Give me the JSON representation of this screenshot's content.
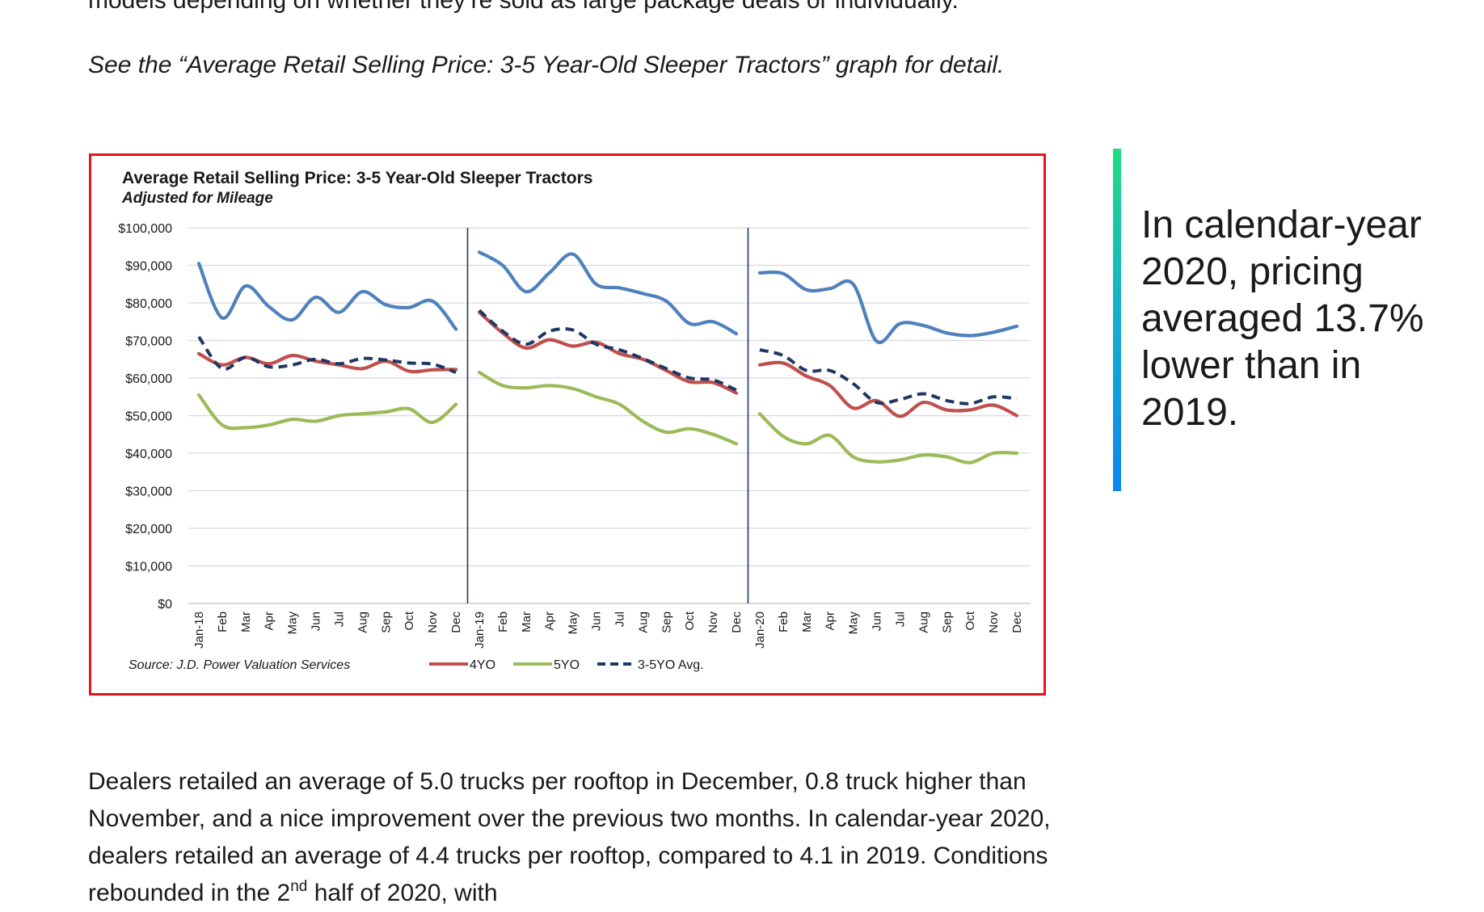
{
  "article": {
    "para_top": "models depending on whether they’re sold as large package deals or individually.",
    "para_italic": "See the “Average Retail Selling Price: 3-5 Year-Old Sleeper Tractors” graph for detail.",
    "pull_quote": "In calendar-year 2020, pricing averaged 13.7% lower than in 2019.",
    "para_bottom_a": "Dealers retailed an average of 5.0 trucks per rooftop in December, 0.8 truck higher than November, and a nice improvement over the previous two months. In calendar-year 2020, dealers retailed an average of 4.4 trucks per rooftop, compared to 4.1 in 2019. Conditions rebounded in the 2",
    "para_bottom_sup": "nd",
    "para_bottom_b": " half of 2020, with"
  },
  "colors": {
    "frame": "#e8141b",
    "blue": "#4f81bd",
    "red": "#c0504d",
    "green": "#9bbb59",
    "avg": "#1f3864",
    "accent_gradient": [
      "#1fdc82",
      "#0b86f0"
    ]
  },
  "chart_data": {
    "type": "line",
    "title": "Average Retail Selling Price: 3-5 Year-Old Sleeper Tractors",
    "subtitle": "Adjusted for Mileage",
    "source": "Source: J.D. Power Valuation Services",
    "ylim": [
      0,
      100000
    ],
    "y_ticks": [
      "$100,000",
      "$90,000",
      "$80,000",
      "$70,000",
      "$60,000",
      "$50,000",
      "$40,000",
      "$30,000",
      "$20,000",
      "$10,000",
      "$0"
    ],
    "grid": true,
    "legend_position": "bottom",
    "categories": [
      "Jan-18",
      "Feb",
      "Mar",
      "Apr",
      "May",
      "Jun",
      "Jul",
      "Aug",
      "Sep",
      "Oct",
      "Nov",
      "Dec",
      "Jan-19",
      "Feb",
      "Mar",
      "Apr",
      "May",
      "Jun",
      "Jul",
      "Aug",
      "Sep",
      "Oct",
      "Nov",
      "Dec",
      "Jan-20",
      "Feb",
      "Mar",
      "Apr",
      "May",
      "Jun",
      "Jul",
      "Aug",
      "Sep",
      "Oct",
      "Nov",
      "Dec"
    ],
    "year_dividers_after": [
      "Dec",
      "Dec"
    ],
    "series": [
      {
        "name": "",
        "color": "#4f81bd",
        "dashed": false,
        "values": [
          90500,
          76000,
          84500,
          79000,
          75500,
          81500,
          77500,
          83000,
          79500,
          78800,
          80500,
          73000,
          93500,
          90000,
          83000,
          88000,
          93000,
          85000,
          84000,
          82500,
          80500,
          74500,
          75000,
          71800,
          88000,
          87800,
          83500,
          83800,
          85000,
          69800,
          74500,
          74000,
          72000,
          71300,
          72200,
          73800
        ]
      },
      {
        "name": "4YO",
        "color": "#c0504d",
        "dashed": false,
        "values": [
          66500,
          63500,
          65500,
          63800,
          66000,
          64500,
          63500,
          62500,
          64500,
          61800,
          62200,
          62300,
          77500,
          72000,
          68000,
          70200,
          68500,
          69500,
          66500,
          65000,
          62000,
          59000,
          58800,
          56000,
          63500,
          64000,
          60500,
          58000,
          52000,
          54000,
          49800,
          53500,
          51500,
          51500,
          52800,
          50000
        ]
      },
      {
        "name": "5YO",
        "color": "#9bbb59",
        "dashed": false,
        "values": [
          55500,
          47500,
          46800,
          47500,
          49000,
          48500,
          50000,
          50500,
          51000,
          51800,
          48200,
          53000,
          61500,
          58000,
          57400,
          58000,
          57200,
          55000,
          53000,
          48500,
          45600,
          46500,
          45000,
          42500,
          50500,
          44500,
          42500,
          44700,
          39000,
          37700,
          38200,
          39500,
          39000,
          37500,
          40000,
          40000
        ]
      },
      {
        "name": "3-5YO Avg.",
        "color": "#1f3864",
        "dashed": true,
        "values": [
          71000,
          62500,
          65500,
          63000,
          63500,
          65000,
          63800,
          65200,
          64800,
          64000,
          63700,
          61500,
          78000,
          72500,
          69000,
          72500,
          72800,
          69000,
          67500,
          65200,
          62500,
          60000,
          59500,
          56800,
          67500,
          66000,
          62000,
          62000,
          58500,
          53500,
          54300,
          55800,
          54000,
          53200,
          55000,
          54500
        ]
      }
    ]
  }
}
